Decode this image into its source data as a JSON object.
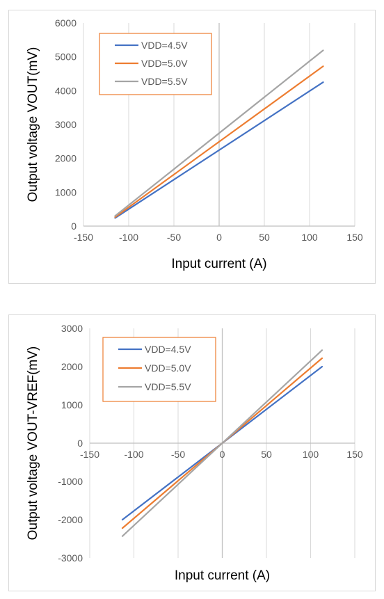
{
  "chart_data": [
    {
      "type": "line",
      "xlabel": "Input current (A)",
      "ylabel": "Output voltage VOUT(mV)",
      "xlim": [
        -150,
        150
      ],
      "ylim": [
        0,
        6000
      ],
      "xticks": [
        "-150",
        "-100",
        "-50",
        "0",
        "50",
        "100",
        "150"
      ],
      "yticks": [
        "0",
        "1000",
        "2000",
        "3000",
        "4000",
        "5000",
        "6000"
      ],
      "grid": "vertical",
      "legend_position": "top-left",
      "series": [
        {
          "name": "VDD=4.5V",
          "color": "#4472c4",
          "x": [
            -115,
            115
          ],
          "y": [
            240,
            4250
          ]
        },
        {
          "name": "VDD=5.0V",
          "color": "#ed7d31",
          "x": [
            -115,
            115
          ],
          "y": [
            265,
            4720
          ]
        },
        {
          "name": "VDD=5.5V",
          "color": "#a5a5a5",
          "x": [
            -115,
            115
          ],
          "y": [
            300,
            5190
          ]
        }
      ]
    },
    {
      "type": "line",
      "xlabel": "Input current (A)",
      "ylabel": "Output voltage VOUT-VREF(mV)",
      "xlim": [
        -150,
        150
      ],
      "ylim": [
        -3000,
        3000
      ],
      "xticks": [
        "-150",
        "-100",
        "-50",
        "0",
        "50",
        "100",
        "150"
      ],
      "yticks": [
        "-3000",
        "-2000",
        "-1000",
        "0",
        "1000",
        "2000",
        "3000"
      ],
      "grid": "vertical",
      "legend_position": "top-left",
      "series": [
        {
          "name": "VDD=4.5V",
          "color": "#4472c4",
          "x": [
            -113,
            113
          ],
          "y": [
            -2000,
            2000
          ]
        },
        {
          "name": "VDD=5.0V",
          "color": "#ed7d31",
          "x": [
            -113,
            113
          ],
          "y": [
            -2220,
            2220
          ]
        },
        {
          "name": "VDD=5.5V",
          "color": "#a5a5a5",
          "x": [
            -113,
            113
          ],
          "y": [
            -2430,
            2430
          ]
        }
      ]
    }
  ],
  "colors": {
    "legend_border": "#ed7d31",
    "gridline": "#d9d9d9",
    "zero_axis": "#bfbfbf"
  }
}
